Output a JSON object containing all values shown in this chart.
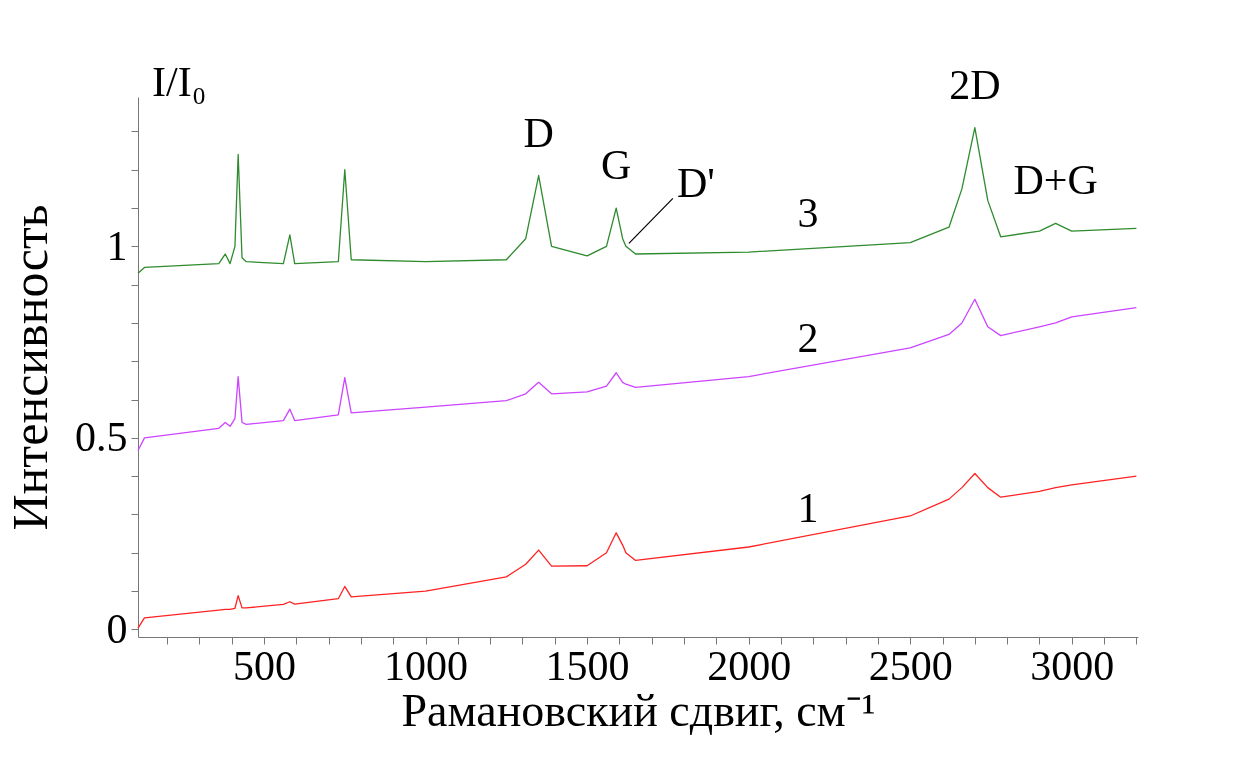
{
  "chart_data": {
    "type": "line",
    "xlabel": "Рамановский сдвиг, см⁻¹",
    "ylabel": "Интенсивность",
    "x": [
      110,
      130,
      360,
      380,
      395,
      410,
      420,
      432,
      445,
      560,
      580,
      595,
      730,
      750,
      770,
      1000,
      1250,
      1310,
      1350,
      1390,
      1500,
      1560,
      1590,
      1610,
      1620,
      1650,
      2000,
      2500,
      2620,
      2660,
      2700,
      2740,
      2780,
      2900,
      2950,
      3000,
      3200
    ],
    "series": [
      {
        "name": "3",
        "color": "#2e8b2e",
        "values": [
          0.93,
          0.945,
          0.955,
          0.98,
          0.955,
          1.0,
          1.24,
          0.97,
          0.96,
          0.955,
          1.03,
          0.955,
          0.96,
          1.2,
          0.965,
          0.96,
          0.965,
          1.02,
          1.185,
          1.0,
          0.975,
          1.0,
          1.1,
          1.02,
          1.0,
          0.98,
          0.985,
          1.01,
          1.05,
          1.15,
          1.31,
          1.12,
          1.025,
          1.04,
          1.06,
          1.04,
          1.047
        ]
      },
      {
        "name": "2",
        "color": "#cc44ff",
        "values": [
          0.467,
          0.5,
          0.525,
          0.54,
          0.53,
          0.55,
          0.66,
          0.54,
          0.535,
          0.545,
          0.575,
          0.545,
          0.56,
          0.657,
          0.565,
          0.58,
          0.597,
          0.615,
          0.645,
          0.615,
          0.62,
          0.635,
          0.67,
          0.645,
          0.64,
          0.632,
          0.66,
          0.735,
          0.77,
          0.8,
          0.862,
          0.79,
          0.767,
          0.79,
          0.8,
          0.816,
          0.84
        ]
      },
      {
        "name": "1",
        "color": "#ff2222",
        "values": [
          0.003,
          0.03,
          0.05,
          0.052,
          0.052,
          0.055,
          0.088,
          0.056,
          0.056,
          0.065,
          0.072,
          0.066,
          0.08,
          0.112,
          0.085,
          0.1,
          0.137,
          0.17,
          0.207,
          0.165,
          0.166,
          0.2,
          0.252,
          0.22,
          0.2,
          0.18,
          0.215,
          0.296,
          0.34,
          0.37,
          0.407,
          0.37,
          0.345,
          0.36,
          0.37,
          0.377,
          0.4
        ]
      }
    ],
    "xlim": [
      110,
      3205
    ],
    "xticks": [
      {
        "value": 200,
        "label": null
      },
      {
        "value": 300,
        "label": null
      },
      {
        "value": 400,
        "label": null
      },
      500,
      {
        "value": 600,
        "label": null
      },
      {
        "value": 700,
        "label": null
      },
      {
        "value": 800,
        "label": null
      },
      {
        "value": 900,
        "label": null
      },
      1000,
      {
        "value": 1100,
        "label": null
      },
      {
        "value": 1200,
        "label": null
      },
      {
        "value": 1300,
        "label": null
      },
      {
        "value": 1400,
        "label": null
      },
      1500,
      {
        "value": 1600,
        "label": null
      },
      {
        "value": 1700,
        "label": null
      },
      {
        "value": 1800,
        "label": null
      },
      {
        "value": 1900,
        "label": null
      },
      2000,
      {
        "value": 2100,
        "label": null
      },
      {
        "value": 2200,
        "label": null
      },
      {
        "value": 2300,
        "label": null
      },
      {
        "value": 2400,
        "label": null
      },
      2500,
      {
        "value": 2600,
        "label": null
      },
      {
        "value": 2700,
        "label": null
      },
      {
        "value": 2800,
        "label": null
      },
      {
        "value": 2900,
        "label": null
      },
      3000,
      {
        "value": 3100,
        "label": null
      },
      {
        "value": 3200,
        "label": null
      }
    ],
    "ylim": [
      -0.02,
      1.39
    ],
    "yticks": [
      0,
      {
        "value": 0.1,
        "label": null
      },
      {
        "value": 0.2,
        "label": null
      },
      {
        "value": 0.3,
        "label": null
      },
      {
        "value": 0.4,
        "label": null
      },
      0.5,
      {
        "value": 0.6,
        "label": null
      },
      {
        "value": 0.7,
        "label": null
      },
      {
        "value": 0.8,
        "label": null
      },
      {
        "value": 0.9,
        "label": null
      },
      1,
      {
        "value": 1.1,
        "label": null
      },
      {
        "value": 1.2,
        "label": null
      },
      {
        "value": 1.3,
        "label": null
      }
    ],
    "grid": false,
    "legend": false,
    "line_style": "solid",
    "marker": "none",
    "annotations": [
      "I/I₀",
      {
        "text": "D",
        "x": 1350,
        "y": 1.185
      },
      {
        "text": "G",
        "x": 1590,
        "y": 1.1
      },
      {
        "text": "D'",
        "x": 1620,
        "y": 1.0
      },
      {
        "text": "2D",
        "x": 2700,
        "y": 1.31
      },
      {
        "text": "D+G",
        "x": 2950,
        "y": 1.06
      }
    ]
  }
}
